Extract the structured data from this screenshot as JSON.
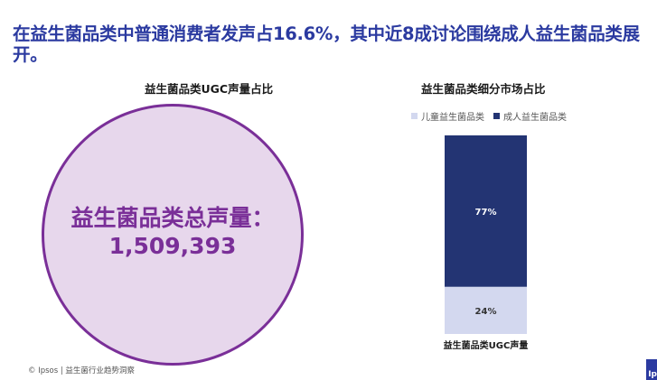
{
  "headline": "在益生菌品类中普通消费者发声占16.6%，其中近8成讨论围绕成人益生菌品类展开。",
  "footer": "© Ipsos | 益生菌行业趋势洞察",
  "corner_badge": "Ip",
  "colors": {
    "headline": "#2b3aa0",
    "circle_fill": "#e7d7ec",
    "circle_stroke": "#7a2f98",
    "children_series": "#d3d8ef",
    "adult_series": "#233473"
  },
  "chart_data": [
    {
      "type": "bubble",
      "title": "益生菌品类UGC声量占比",
      "label": "益生菌品类总声量：",
      "value": 1509393,
      "value_text": "1,509,393"
    },
    {
      "type": "bar",
      "stacked": true,
      "title": "益生菌品类细分市场占比",
      "categories": [
        "益生菌品类UGC声量"
      ],
      "legend_position": "top",
      "series": [
        {
          "name": "儿童益生菌品类",
          "values": [
            24
          ],
          "label": "24%",
          "color": "#d3d8ef"
        },
        {
          "name": "成人益生菌品类",
          "values": [
            77
          ],
          "label": "77%",
          "color": "#233473"
        }
      ]
    }
  ]
}
